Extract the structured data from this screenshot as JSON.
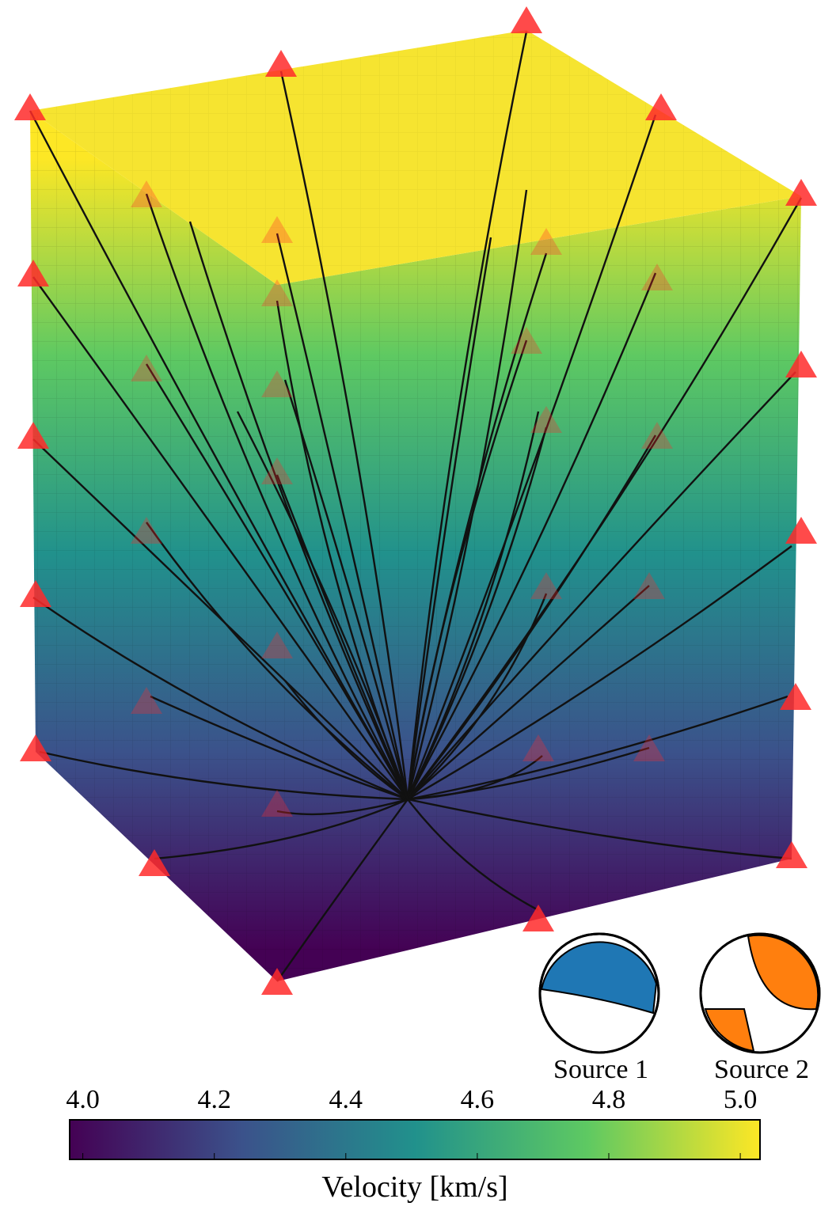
{
  "chart_data": {
    "type": "colorbar",
    "label": "Velocity [km/s]",
    "lim": [
      3.98,
      5.03
    ],
    "ticks": [
      {
        "value": 4,
        "label": "4.0"
      },
      4.2,
      4.4,
      4.6,
      4.8,
      {
        "value": 5,
        "label": "5.0"
      }
    ],
    "colormap": [
      "#440154",
      "#3b528b",
      "#21918c",
      "#5ec962",
      "#fde725"
    ],
    "sources": [
      {
        "name": "Source 1",
        "color": "#1f77b4"
      },
      {
        "name": "Source 2",
        "color": "#ff7f0e"
      }
    ]
  }
}
